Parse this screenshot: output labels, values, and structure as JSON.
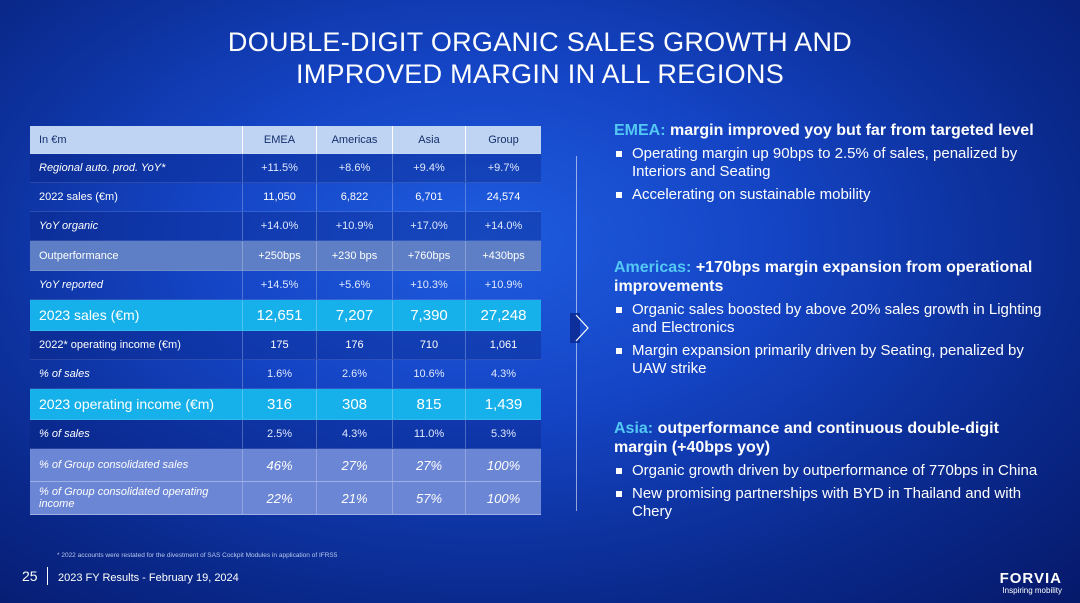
{
  "title_line1": "DOUBLE-DIGIT ORGANIC SALES GROWTH AND",
  "title_line2": "IMPROVED MARGIN IN ALL REGIONS",
  "table": {
    "header": [
      "In €m",
      "EMEA",
      "Americas",
      "Asia",
      "Group"
    ],
    "rows": [
      {
        "label": "Regional auto. prod. YoY*",
        "values": [
          "+11.5%",
          "+8.6%",
          "+9.4%",
          "+9.7%"
        ]
      },
      {
        "label": "2022 sales (€m)",
        "values": [
          "11,050",
          "6,822",
          "6,701",
          "24,574"
        ]
      },
      {
        "label": "YoY organic",
        "values": [
          "+14.0%",
          "+10.9%",
          "+17.0%",
          "+14.0%"
        ]
      },
      {
        "label": "Outperformance",
        "values": [
          "+250bps",
          "+230 bps",
          "+760bps",
          "+430bps"
        ]
      },
      {
        "label": "YoY reported",
        "values": [
          "+14.5%",
          "+5.6%",
          "+10.3%",
          "+10.9%"
        ]
      },
      {
        "label": "2023 sales (€m)",
        "values": [
          "12,651",
          "7,207",
          "7,390",
          "27,248"
        ]
      },
      {
        "label": "2022* operating income (€m)",
        "values": [
          "175",
          "176",
          "710",
          "1,061"
        ]
      },
      {
        "label": "% of sales",
        "values": [
          "1.6%",
          "2.6%",
          "10.6%",
          "4.3%"
        ]
      },
      {
        "label": "2023 operating income (€m)",
        "values": [
          "316",
          "308",
          "815",
          "1,439"
        ]
      },
      {
        "label": "% of sales",
        "values": [
          "2.5%",
          "4.3%",
          "11.0%",
          "5.3%"
        ]
      },
      {
        "label": "% of Group consolidated sales",
        "values": [
          "46%",
          "27%",
          "27%",
          "100%"
        ]
      },
      {
        "label": "% of Group  consolidated operating income",
        "values": [
          "22%",
          "21%",
          "57%",
          "100%"
        ]
      }
    ]
  },
  "emea": {
    "region": "EMEA:",
    "headline": " margin improved yoy but far from targeted level",
    "bullets": [
      "Operating margin up 90bps to 2.5% of sales, penalized by Interiors and Seating",
      "Accelerating on sustainable mobility"
    ]
  },
  "americas": {
    "region": "Americas:",
    "headline": " +170bps margin expansion from operational improvements",
    "bullets": [
      "Organic sales boosted by above 20% sales growth in Lighting and Electronics",
      "Margin expansion primarily driven by Seating, penalized by UAW strike"
    ]
  },
  "asia": {
    "region": "Asia:",
    "headline": " outperformance and continuous double-digit margin (+40bps yoy)",
    "bullets": [
      "Organic growth driven by outperformance of 770bps in China",
      "New promising partnerships with BYD in Thailand and with Chery"
    ]
  },
  "footnote": "* 2022 accounts were restated for the divestment of SAS Cockpit Modules in application of IFRS5",
  "footer": {
    "page": "25",
    "text": "2023 FY Results - February 19, 2024",
    "brand": "FORVIA",
    "tagline": "Inspiring mobility"
  },
  "colors": {
    "background": "#1444c4",
    "accent": "#54c8f5",
    "highlight_row": "#16b1ea"
  }
}
